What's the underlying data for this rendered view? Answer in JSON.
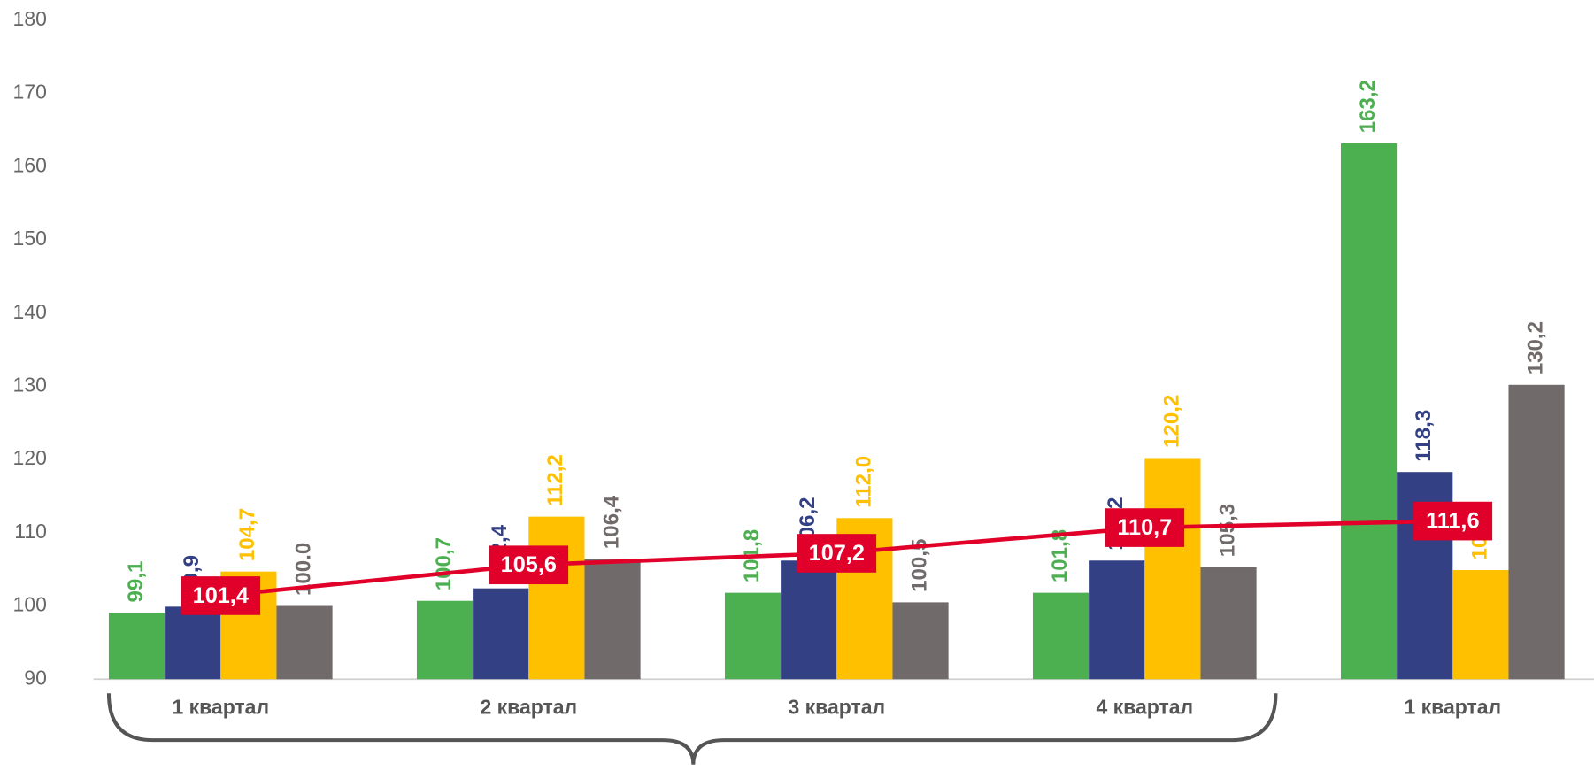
{
  "chart_data": {
    "type": "bar",
    "categories": [
      "1 квартал",
      "2 квартал",
      "3 квартал",
      "4 квартал",
      "1 квартал"
    ],
    "ylim": [
      90,
      180
    ],
    "yticks": [
      90,
      100,
      110,
      120,
      130,
      140,
      150,
      160,
      170,
      180
    ],
    "grid": false,
    "series": [
      {
        "color": "#4caf50",
        "values": [
          99.1,
          100.7,
          101.8,
          101.8,
          163.2
        ],
        "value_labels": [
          "99,1",
          "100,7",
          "101,8",
          "101,8",
          "163,2"
        ]
      },
      {
        "color": "#334084",
        "values": [
          99.9,
          102.4,
          106.2,
          106.2,
          118.3
        ],
        "value_labels": [
          "99,9",
          "102,4",
          "106,2",
          "106,2",
          "118,3"
        ]
      },
      {
        "color": "#ffc000",
        "values": [
          104.7,
          112.2,
          112.0,
          120.2,
          104.9
        ],
        "value_labels": [
          "104,7",
          "112,2",
          "112,0",
          "120,2",
          "104,9"
        ]
      },
      {
        "color": "#706b6a",
        "values": [
          100.0,
          106.4,
          100.5,
          105.3,
          130.2
        ],
        "value_labels": [
          "100.0",
          "106,4",
          "100,5",
          "105,3",
          "130,2"
        ]
      },
      {
        "type": "line",
        "color": "#e0002a",
        "values": [
          101.4,
          105.6,
          107.2,
          110.7,
          111.6
        ],
        "value_labels": [
          "101,4",
          "105,6",
          "107,2",
          "110,7",
          "111,6"
        ]
      }
    ]
  }
}
